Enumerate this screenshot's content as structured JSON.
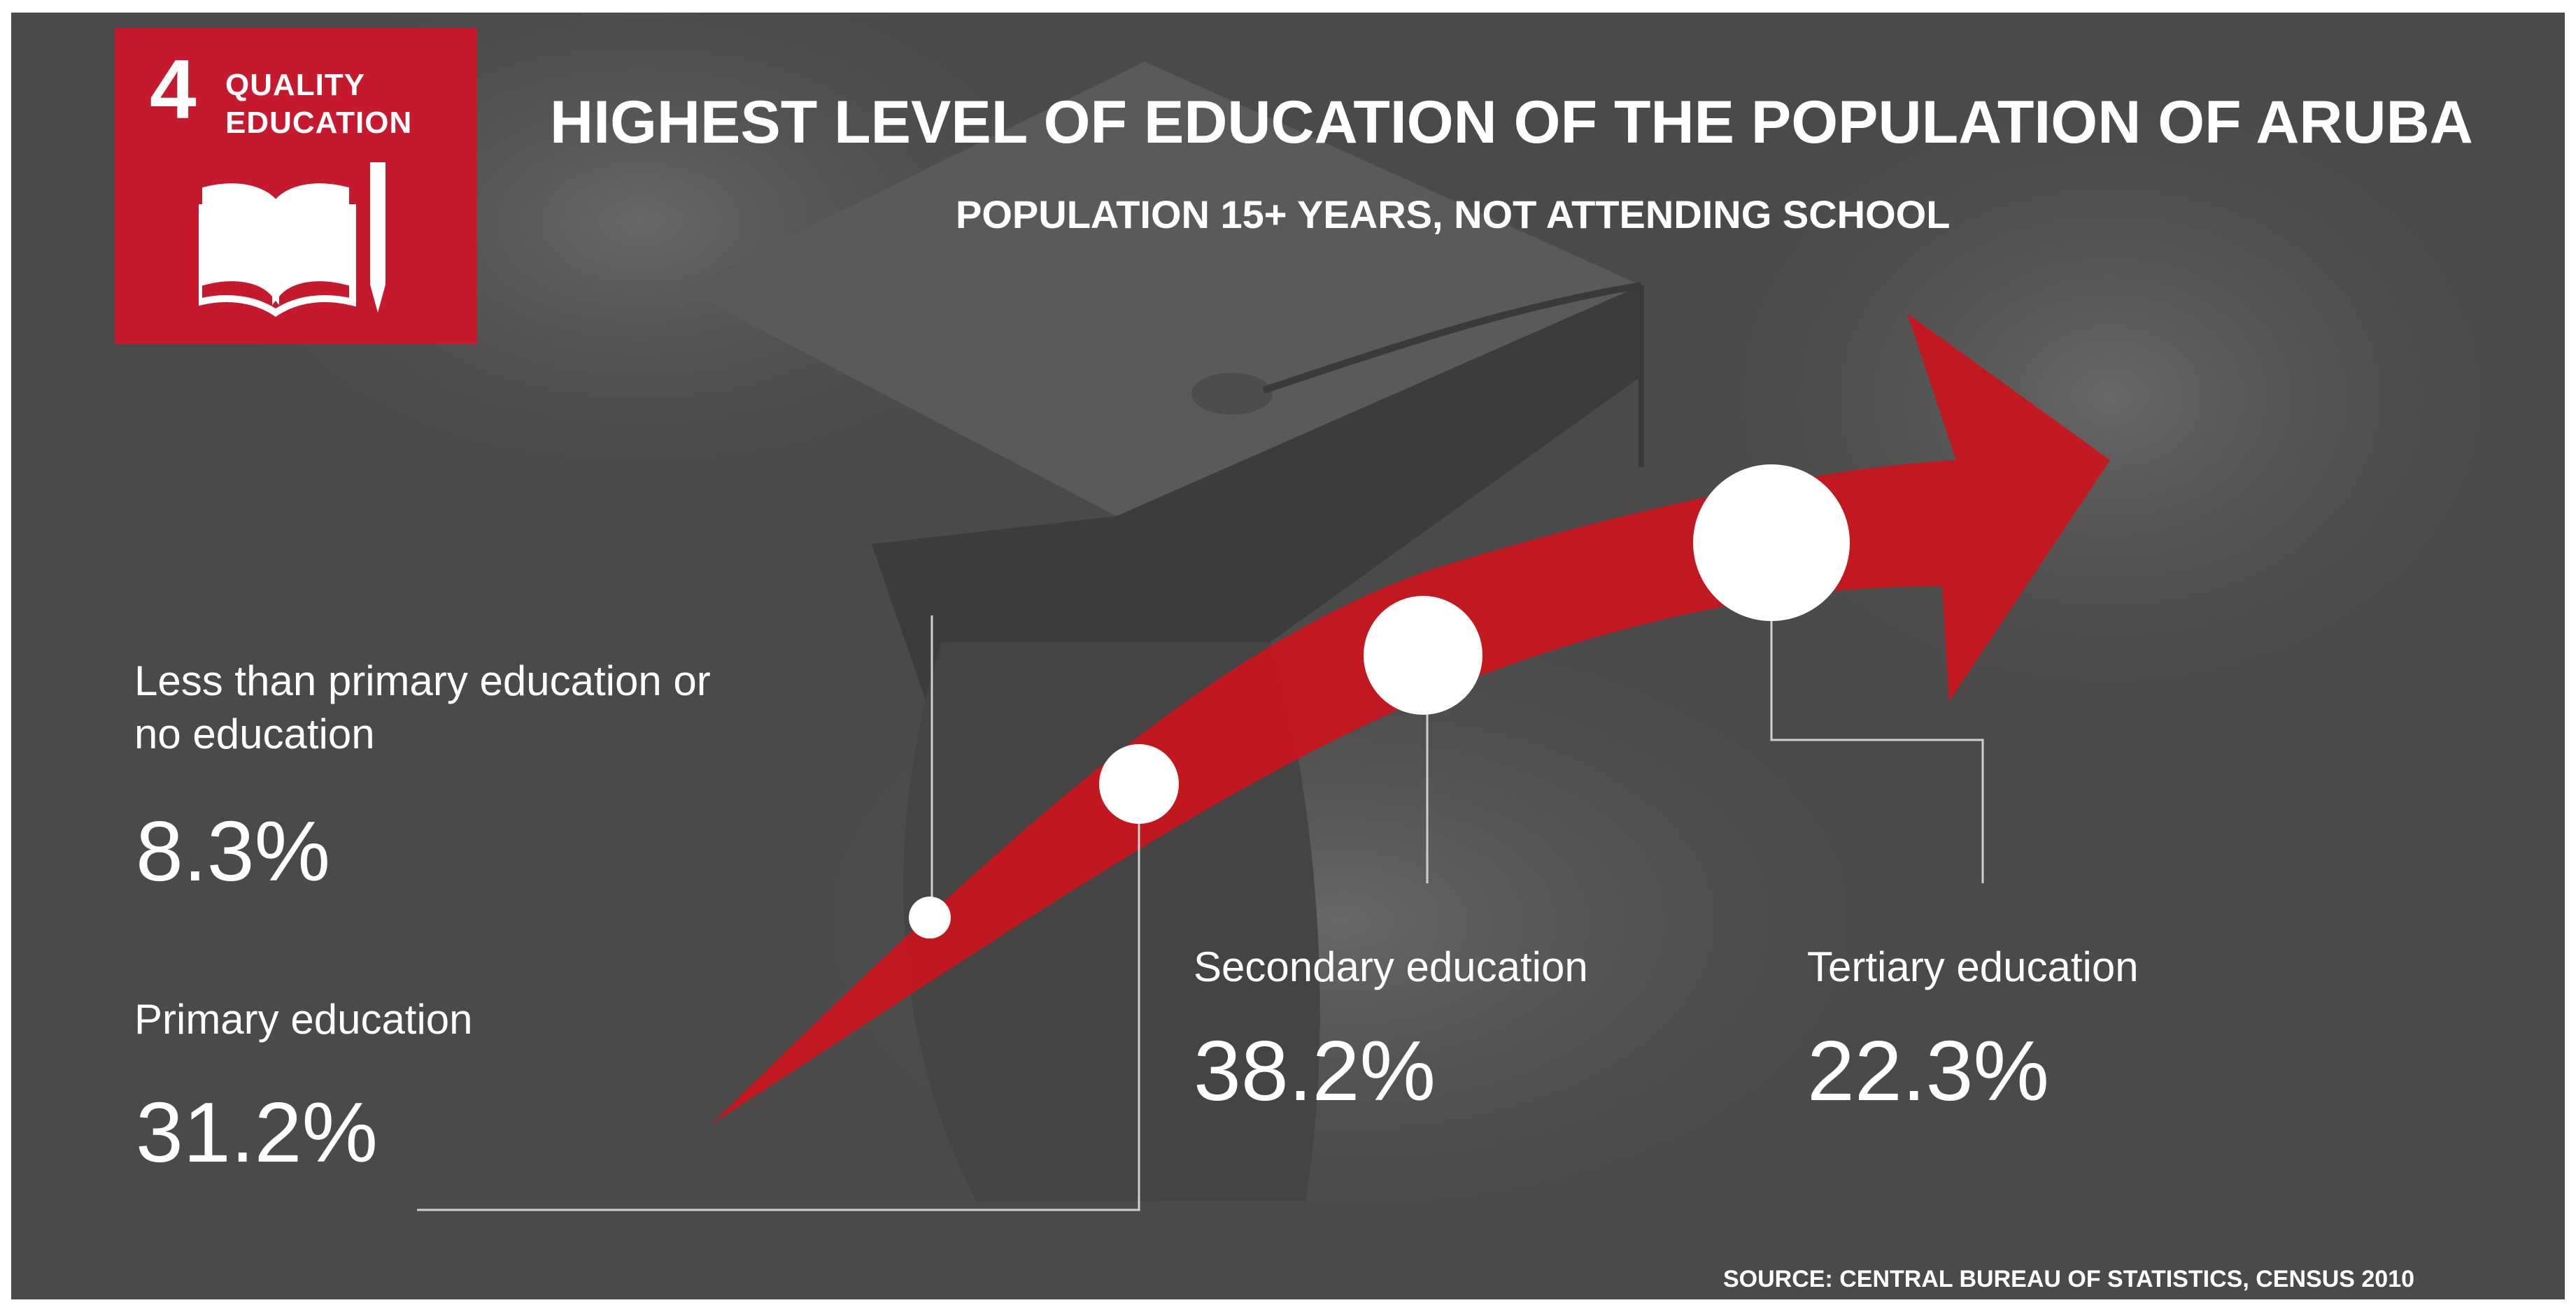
{
  "badge": {
    "number": "4",
    "line1": "QUALITY",
    "line2": "EDUCATION"
  },
  "title": "HIGHEST LEVEL OF EDUCATION OF THE POPULATION OF ARUBA",
  "subtitle": "POPULATION 15+ YEARS, NOT ATTENDING SCHOOL",
  "chart_data": {
    "type": "infographic",
    "categories": [
      "Less than primary education or no education",
      "Primary education",
      "Secondary education",
      "Tertiary education"
    ],
    "values": [
      8.3,
      31.2,
      38.2,
      22.3
    ],
    "unit": "%"
  },
  "items": [
    {
      "label_lines": [
        "Less than primary education or",
        "no education"
      ],
      "value": "8.3%"
    },
    {
      "label_lines": [
        "Primary education"
      ],
      "value": "31.2%"
    },
    {
      "label_lines": [
        "Secondary education"
      ],
      "value": "38.2%"
    },
    {
      "label_lines": [
        "Tertiary education"
      ],
      "value": "22.3%"
    }
  ],
  "source": "SOURCE: CENTRAL BUREAU OF STATISTICS, CENSUS 2010",
  "colors": {
    "accent": "#c5192d",
    "arrow": "#c8161e",
    "background": "#4b4b4b",
    "text": "#ffffff"
  }
}
